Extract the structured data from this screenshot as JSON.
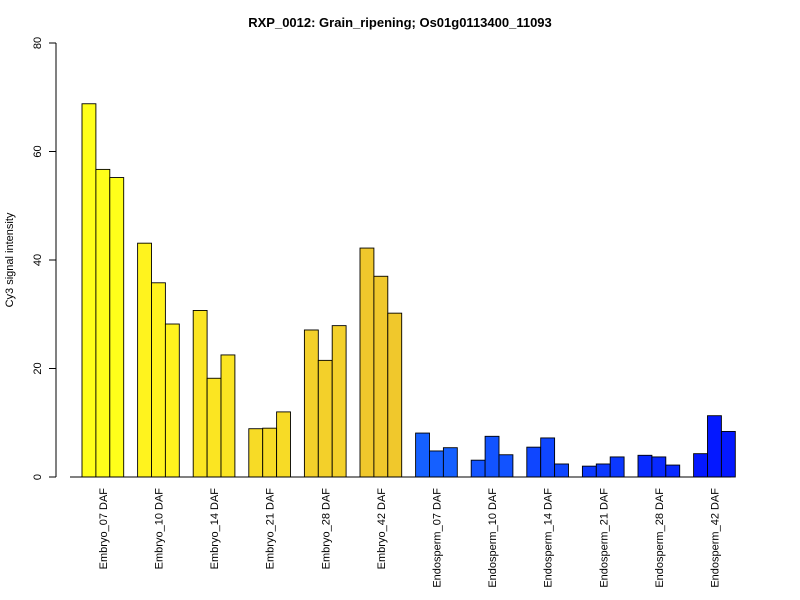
{
  "chart_data": {
    "type": "bar",
    "title": "RXP_0012: Grain_ripening; Os01g0113400_11093",
    "xlabel": "",
    "ylabel": "Cy3 signal intensity",
    "ylim": [
      0,
      80
    ],
    "yticks": [
      0,
      20,
      40,
      60,
      80
    ],
    "grid": false,
    "legend": "none",
    "categories": [
      "Embryo_07 DAF",
      "Embryo_10 DAF",
      "Embryo_14 DAF",
      "Embryo_21 DAF",
      "Embryo_28 DAF",
      "Embryo_42 DAF",
      "Endosperm_07 DAF",
      "Endosperm_10 DAF",
      "Endosperm_14 DAF",
      "Endosperm_21 DAF",
      "Endosperm_28 DAF",
      "Endosperm_42 DAF"
    ],
    "replicates_per_category": 3,
    "values": [
      [
        68.8,
        56.7,
        55.2
      ],
      [
        43.1,
        35.8,
        28.2
      ],
      [
        30.7,
        18.2,
        22.5
      ],
      [
        8.9,
        9.0,
        12.0
      ],
      [
        27.1,
        21.5,
        27.9
      ],
      [
        42.2,
        37.0,
        30.2
      ],
      [
        8.1,
        4.8,
        5.4
      ],
      [
        3.1,
        7.5,
        4.1
      ],
      [
        5.5,
        7.2,
        2.4
      ],
      [
        2.0,
        2.4,
        3.7
      ],
      [
        4.0,
        3.7,
        2.2
      ],
      [
        4.3,
        11.3,
        8.4
      ]
    ],
    "colors": [
      "#ffff1a",
      "#fff31e",
      "#fbe522",
      "#f7db26",
      "#f3d02a",
      "#f0c82c",
      "#1560ff",
      "#1253ff",
      "#0f46ff",
      "#0b38ff",
      "#0829ff",
      "#0418ff"
    ]
  }
}
